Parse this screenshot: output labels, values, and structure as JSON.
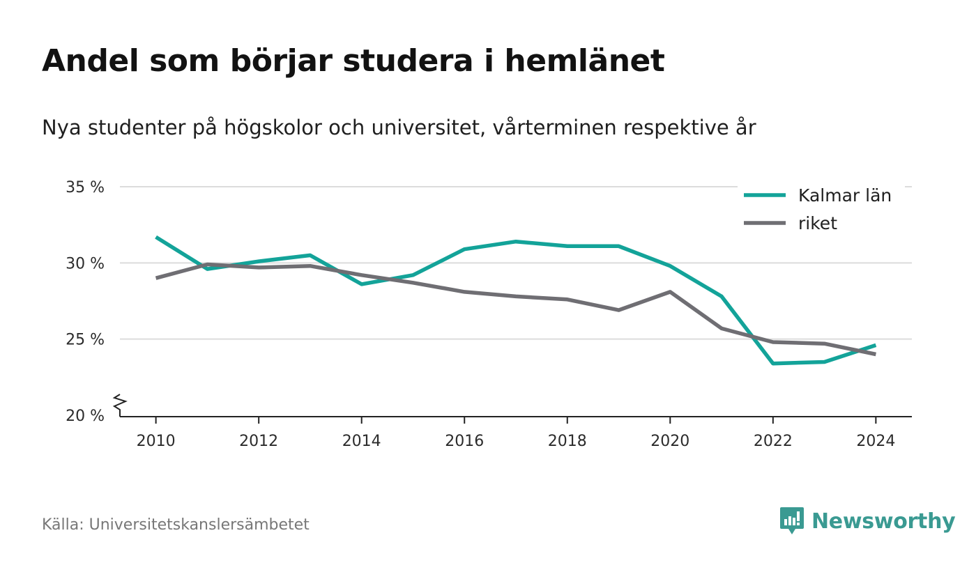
{
  "title": "Andel som börjar studera i hemlänet",
  "subtitle": "Nya studenter på högskolor och universitet, vårterminen respektive år",
  "source": "Källa: Universitetskanslersämbetet",
  "brand": {
    "name": "Newsworthy",
    "icon": "newsworthy-logo-icon",
    "color": "#3a9a92"
  },
  "chart_data": {
    "type": "line",
    "title": "",
    "xlabel": "",
    "ylabel": "",
    "x": [
      2010,
      2011,
      2012,
      2013,
      2014,
      2015,
      2016,
      2017,
      2018,
      2019,
      2020,
      2021,
      2022,
      2023,
      2024
    ],
    "series": [
      {
        "name": "Kalmar län",
        "color": "#13a399",
        "values": [
          31.7,
          29.6,
          30.1,
          30.5,
          28.6,
          29.2,
          30.9,
          31.4,
          31.1,
          31.1,
          29.8,
          27.8,
          23.4,
          23.5,
          24.6
        ]
      },
      {
        "name": "riket",
        "color": "#6f6e73",
        "values": [
          29.0,
          29.9,
          29.7,
          29.8,
          29.2,
          28.7,
          28.1,
          27.8,
          27.6,
          26.9,
          28.1,
          25.7,
          24.8,
          24.7,
          24.0
        ]
      }
    ],
    "xlim": [
      2009.3,
      2024.7
    ],
    "ylim": [
      20,
      35
    ],
    "x_ticks": [
      2010,
      2012,
      2014,
      2016,
      2018,
      2020,
      2022,
      2024
    ],
    "x_tick_labels": [
      "2010",
      "2012",
      "2014",
      "2016",
      "2018",
      "2020",
      "2022",
      "2024"
    ],
    "y_ticks": [
      20,
      25,
      30,
      35
    ],
    "y_tick_labels": [
      "20 %",
      "25 %",
      "30 %",
      "35 %"
    ],
    "y_axis_break": true,
    "grid": true,
    "legend_position": "top-right"
  }
}
